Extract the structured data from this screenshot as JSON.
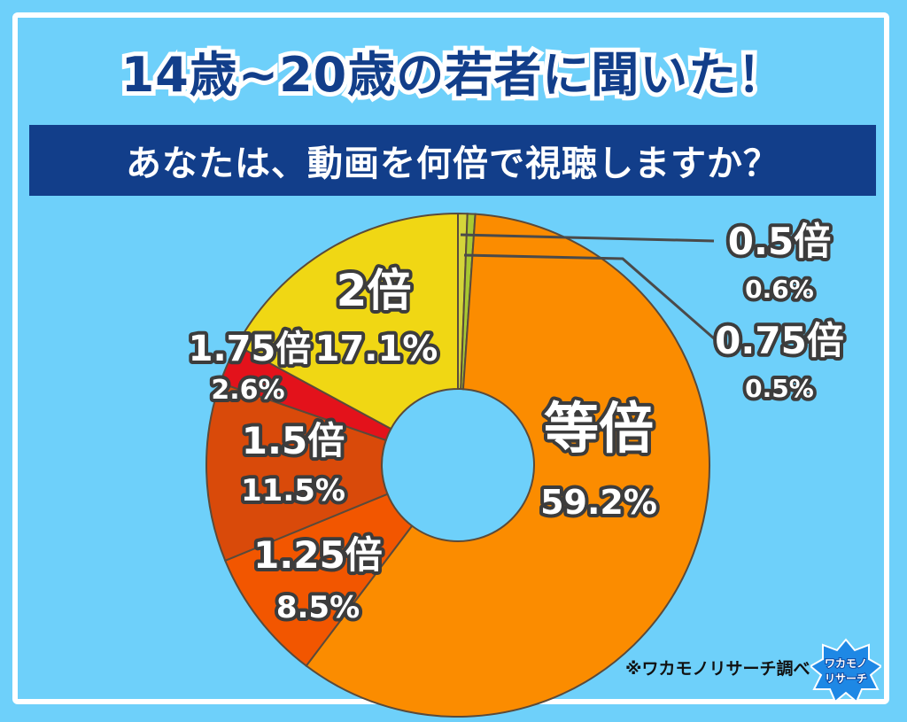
{
  "header": {
    "title": "14歳~20歳の若者に聞いた！",
    "question": "あなたは、動画を何倍で視聴しますか？"
  },
  "chart_data": {
    "type": "pie",
    "donut": true,
    "categories": [
      "0.5倍",
      "0.75倍",
      "等倍",
      "1.25倍",
      "1.5倍",
      "1.75倍",
      "2倍"
    ],
    "values": [
      0.6,
      0.5,
      59.2,
      8.5,
      11.5,
      2.6,
      17.1
    ],
    "value_labels": [
      "0.6%",
      "0.5%",
      "59.2%",
      "8.5%",
      "11.5%",
      "2.6%",
      "17.1%"
    ],
    "colors": [
      "#d4d43a",
      "#a8c832",
      "#fb8c00",
      "#f25600",
      "#d94a0a",
      "#e3121b",
      "#f0d714"
    ],
    "order": "clockwise from top"
  },
  "footer": {
    "credit": "※ワカモノリサーチ調べ",
    "logo_text": [
      "ワカモノ",
      "リサーチ"
    ]
  }
}
